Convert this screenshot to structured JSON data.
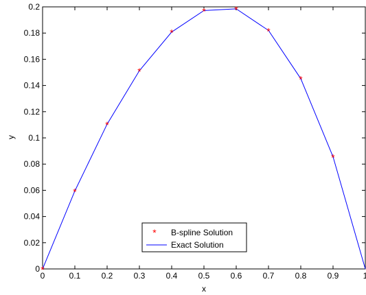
{
  "chart_data": {
    "type": "line",
    "xlabel": "x",
    "ylabel": "y",
    "xlim": [
      0,
      1
    ],
    "ylim": [
      0,
      0.2
    ],
    "x_ticks": [
      0,
      0.1,
      0.2,
      0.3,
      0.4,
      0.5,
      0.6,
      0.7,
      0.8,
      0.9,
      1
    ],
    "x_tick_labels": [
      "0",
      "0.1",
      "0.2",
      "0.3",
      "0.4",
      "0.5",
      "0.6",
      "0.7",
      "0.8",
      "0.9",
      "1"
    ],
    "y_ticks": [
      0,
      0.02,
      0.04,
      0.06,
      0.08,
      0.1,
      0.12,
      0.14,
      0.16,
      0.18,
      0.2
    ],
    "y_tick_labels": [
      "0",
      "0.02",
      "0.04",
      "0.06",
      "0.08",
      "0.1",
      "0.12",
      "0.14",
      "0.16",
      "0.18",
      "0.2"
    ],
    "grid": false,
    "legend_position": "bottom-center",
    "series": [
      {
        "name": "B-spline Solution",
        "style": "markers",
        "marker": "*",
        "color": "#ff0000",
        "x": [
          0,
          0.1,
          0.2,
          0.3,
          0.4,
          0.5,
          0.6,
          0.7,
          0.8,
          0.9
        ],
        "y": [
          0,
          0.0595,
          0.1105,
          0.1513,
          0.1808,
          0.1972,
          0.1985,
          0.182,
          0.1452,
          0.0856
        ]
      },
      {
        "name": "Exact Solution",
        "style": "line",
        "color": "#0000ff",
        "x": [
          0,
          0.1,
          0.2,
          0.3,
          0.4,
          0.5,
          0.6,
          0.7,
          0.8,
          0.9,
          1
        ],
        "y": [
          0,
          0.0595,
          0.1105,
          0.1513,
          0.1808,
          0.1972,
          0.1985,
          0.182,
          0.1452,
          0.0856,
          0
        ]
      }
    ]
  }
}
